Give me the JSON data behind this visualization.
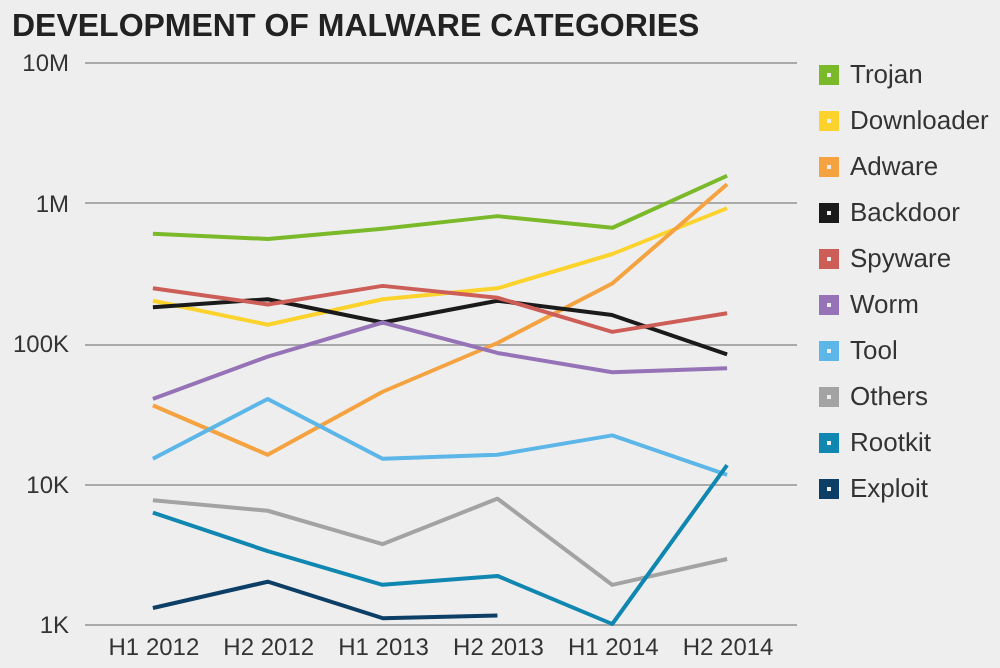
{
  "chart_data": {
    "type": "line",
    "title": "DEVELOPMENT OF MALWARE CATEGORIES",
    "categories": [
      "H1 2012",
      "H2 2012",
      "H1 2013",
      "H2 2013",
      "H1 2014",
      "H2 2014"
    ],
    "log": true,
    "ylim": [
      1000,
      10000000
    ],
    "yticks": [
      {
        "value": 1000,
        "label": "1K"
      },
      {
        "value": 10000,
        "label": "10K"
      },
      {
        "value": 100000,
        "label": "100K"
      },
      {
        "value": 1000000,
        "label": "1M"
      },
      {
        "value": 10000000,
        "label": "10M"
      }
    ],
    "grid": "y",
    "legend": "right",
    "marker": "none",
    "line_style": "solid",
    "series": [
      {
        "name": "Trojan",
        "color": "#7ab929",
        "values": [
          600000,
          550000,
          650000,
          800000,
          660000,
          1550000
        ]
      },
      {
        "name": "Downloader",
        "color": "#fcd22c",
        "values": [
          200000,
          135000,
          205000,
          245000,
          430000,
          910000
        ]
      },
      {
        "name": "Adware",
        "color": "#f4a340",
        "values": [
          36000,
          16000,
          45000,
          100000,
          265000,
          1350000
        ]
      },
      {
        "name": "Backdoor",
        "color": "#1a1a1a",
        "values": [
          180000,
          205000,
          140000,
          200000,
          158000,
          83000
        ]
      },
      {
        "name": "Spyware",
        "color": "#cc5d57",
        "values": [
          245000,
          188000,
          255000,
          210000,
          120000,
          163000
        ]
      },
      {
        "name": "Worm",
        "color": "#9573b6",
        "values": [
          40000,
          80000,
          140000,
          85000,
          62000,
          66000
        ]
      },
      {
        "name": "Tool",
        "color": "#5cb6e8",
        "values": [
          15000,
          40000,
          15000,
          16000,
          22000,
          11500
        ]
      },
      {
        "name": "Others",
        "color": "#a3a3a3",
        "values": [
          7600,
          6400,
          3700,
          7800,
          1900,
          2900
        ]
      },
      {
        "name": "Rootkit",
        "color": "#1087b0",
        "values": [
          6200,
          3300,
          1900,
          2200,
          1000,
          13500
        ]
      },
      {
        "name": "Exploit",
        "color": "#0d3f66",
        "values": [
          1300,
          2000,
          1100,
          1150,
          null,
          null
        ]
      }
    ]
  }
}
